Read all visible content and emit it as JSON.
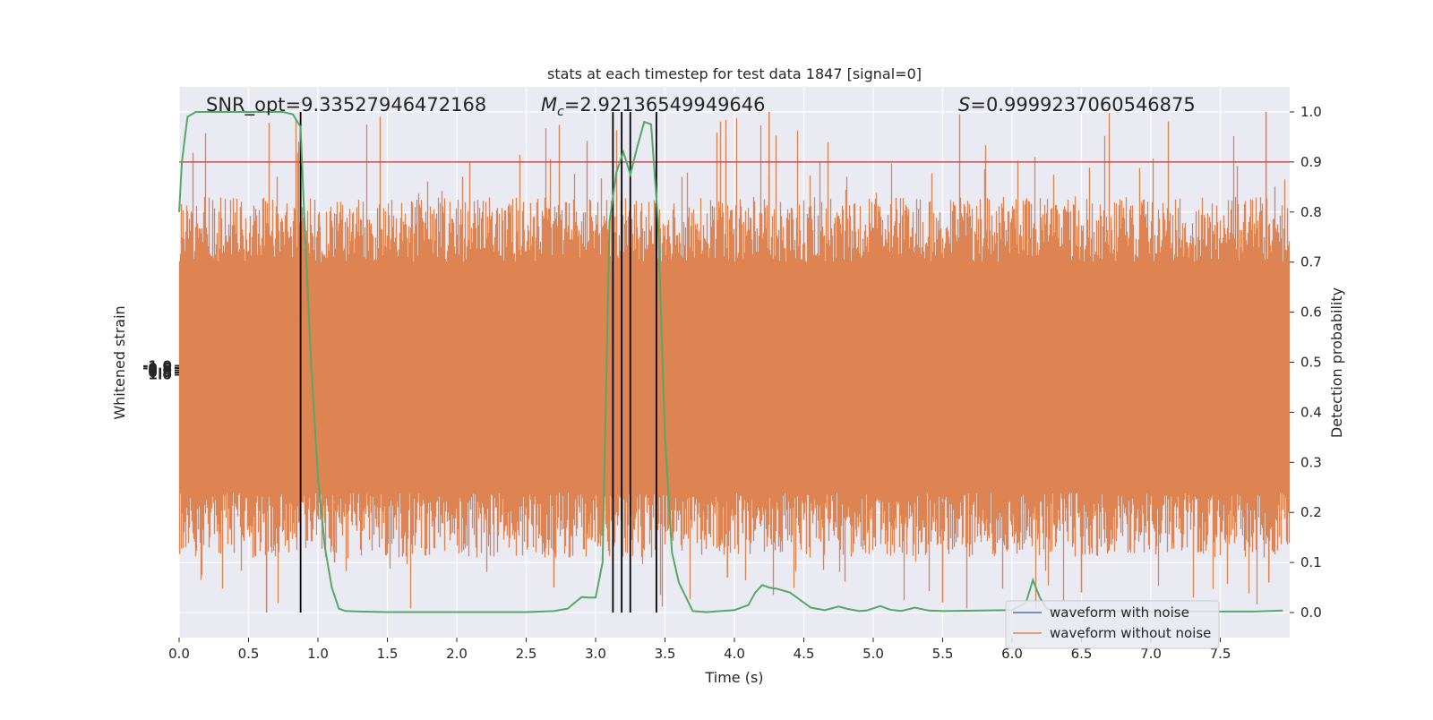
{
  "chart_data": {
    "type": "line",
    "title": "stats at each timestep for test data 1847 [signal=0]",
    "xlabel": "Time (s)",
    "ylabel_left": "Whitened strain",
    "ylabel_right": "Detection probability",
    "xlim": [
      0.0,
      8.0
    ],
    "ylim_right": [
      -0.05,
      1.05
    ],
    "x_ticks": [
      "0.0",
      "0.5",
      "1.0",
      "1.5",
      "2.0",
      "2.5",
      "3.0",
      "3.5",
      "4.0",
      "4.5",
      "5.0",
      "5.5",
      "6.0",
      "6.5",
      "7.0",
      "7.5"
    ],
    "y_ticks_right": [
      "0.0",
      "0.1",
      "0.2",
      "0.3",
      "0.4",
      "0.5",
      "0.6",
      "0.7",
      "0.8",
      "0.9",
      "1.0"
    ],
    "annotations": {
      "snr": "SNR_opt=9.33527946472168",
      "mc_symbol": "M",
      "mc_sub": "c",
      "mc_value": "=2.92136549949646",
      "s_symbol": "S",
      "s_value": "=0.9999237060546875"
    },
    "threshold": 0.9,
    "vlines": [
      0.875,
      3.125,
      3.188,
      3.25,
      3.438
    ],
    "legend": {
      "placement": "lower-right",
      "entries": [
        "waveform with noise",
        "waveform without noise"
      ]
    },
    "series": [
      {
        "name": "waveform with noise",
        "color": "#4c72b0",
        "note_values": "hidden under orange noise band"
      },
      {
        "name": "waveform without noise",
        "color": "#dd8452",
        "band_lower_typical": 0.22,
        "band_upper_typical": 0.72,
        "spike_max": 1.0,
        "spike_min": 0.0
      }
    ],
    "probability": {
      "color": "#55a868",
      "x": [
        0.0,
        0.02,
        0.06,
        0.12,
        0.25,
        0.5,
        0.75,
        0.82,
        0.875,
        0.9,
        0.95,
        1.0,
        1.05,
        1.1,
        1.15,
        1.2,
        1.3,
        1.5,
        2.0,
        2.5,
        2.7,
        2.8,
        2.85,
        2.9,
        2.95,
        3.0,
        3.05,
        3.1,
        3.15,
        3.2,
        3.25,
        3.3,
        3.35,
        3.4,
        3.45,
        3.5,
        3.55,
        3.6,
        3.7,
        3.8,
        4.0,
        4.1,
        4.15,
        4.2,
        4.25,
        4.3,
        4.4,
        4.45,
        4.55,
        4.65,
        4.75,
        4.82,
        4.9,
        4.95,
        5.05,
        5.12,
        5.2,
        5.3,
        5.4,
        5.5,
        6.0,
        6.1,
        6.15,
        6.2,
        6.25,
        6.3,
        6.5,
        7.0,
        7.5,
        7.75,
        7.95
      ],
      "y": [
        0.8,
        0.9,
        0.99,
        1.0,
        1.0,
        1.0,
        1.0,
        0.995,
        0.97,
        0.8,
        0.5,
        0.27,
        0.13,
        0.05,
        0.008,
        0.003,
        0.002,
        0.001,
        0.001,
        0.001,
        0.003,
        0.008,
        0.02,
        0.031,
        0.03,
        0.03,
        0.1,
        0.78,
        0.88,
        0.92,
        0.875,
        0.93,
        0.98,
        0.975,
        0.78,
        0.35,
        0.12,
        0.06,
        0.003,
        0.001,
        0.005,
        0.015,
        0.04,
        0.055,
        0.05,
        0.048,
        0.04,
        0.03,
        0.01,
        0.005,
        0.012,
        0.007,
        0.003,
        0.004,
        0.013,
        0.006,
        0.003,
        0.01,
        0.004,
        0.003,
        0.005,
        0.02,
        0.065,
        0.03,
        0.008,
        0.004,
        0.003,
        0.002,
        0.002,
        0.002,
        0.004
      ]
    },
    "left_axis_ticks": [
      "-1.0",
      "-0.5",
      "0.0",
      "0.5",
      "1.0"
    ],
    "grid": true
  }
}
